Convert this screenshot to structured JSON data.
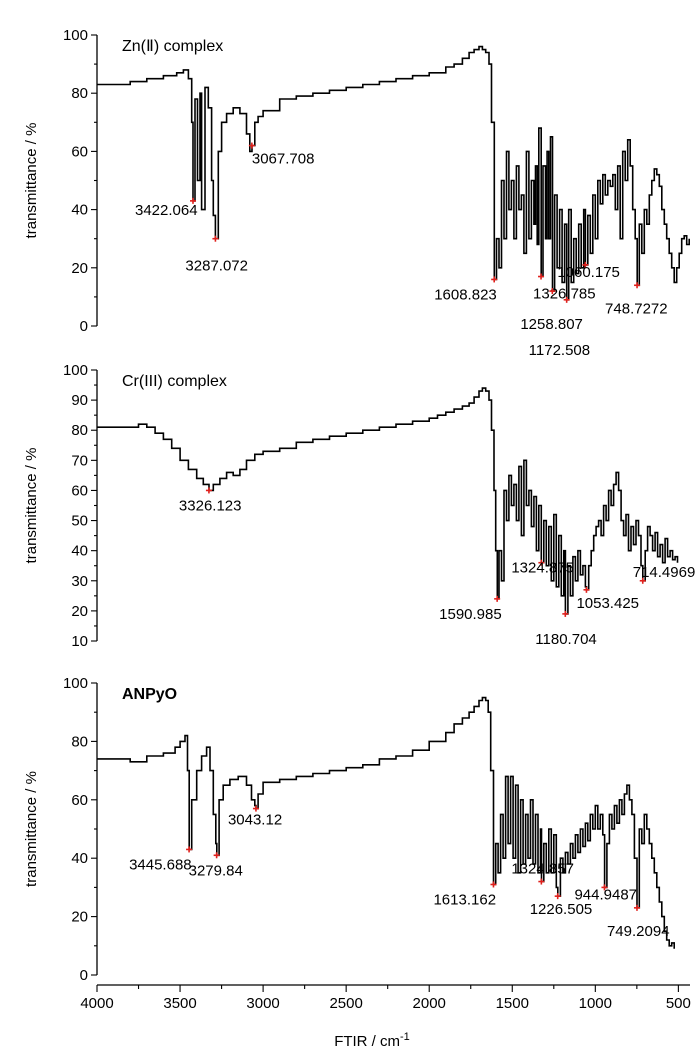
{
  "chart_data": {
    "type": "line",
    "xlabel": "FTIR / cm",
    "xlabel_sup": "-1",
    "xlim": [
      4000,
      430
    ],
    "x_ticks": [
      "4000",
      "3500",
      "3000",
      "2500",
      "2000",
      "1500",
      "1000",
      "500"
    ],
    "x_tick_values": [
      4000,
      3500,
      3000,
      2500,
      2000,
      1500,
      1000,
      500
    ],
    "panels": [
      {
        "title": "Zn(Ⅱ) complex",
        "title_bold": false,
        "ylabel": "transmittance / %",
        "ylim": [
          0,
          100
        ],
        "y_ticks": [
          "0",
          "20",
          "40",
          "60",
          "80",
          "100"
        ],
        "y_tick_values": [
          0,
          20,
          40,
          60,
          80,
          100
        ],
        "peaks": [
          {
            "x": 3422.064,
            "y": 43,
            "label": "3422.064"
          },
          {
            "x": 3287.072,
            "y": 30,
            "label": "3287.072"
          },
          {
            "x": 3067.708,
            "y": 62,
            "label": "3067.708"
          },
          {
            "x": 1608.823,
            "y": 16,
            "label": "1608.823"
          },
          {
            "x": 1326.785,
            "y": 17,
            "label": "1326.785"
          },
          {
            "x": 1258.807,
            "y": 12,
            "label": "1258.807"
          },
          {
            "x": 1172.508,
            "y": 9,
            "label": "1172.508"
          },
          {
            "x": 1060.175,
            "y": 21,
            "label": "1060.175"
          },
          {
            "x": 748.7272,
            "y": 14,
            "label": "748.7272"
          }
        ],
        "series": [
          {
            "x": [
              4000,
              3900,
              3800,
              3700,
              3600,
              3520,
              3480,
              3450,
              3430,
              3422,
              3410,
              3395,
              3380,
              3370,
              3350,
              3330,
              3310,
              3300,
              3287,
              3270,
              3250,
              3220,
              3180,
              3140,
              3100,
              3080,
              3067,
              3050,
              3030,
              3000,
              2900,
              2800,
              2700,
              2600,
              2500,
              2400,
              2300,
              2200,
              2100,
              2000,
              1900,
              1850,
              1800,
              1760,
              1730,
              1700,
              1680,
              1660,
              1640,
              1625,
              1608,
              1595,
              1580,
              1565,
              1550,
              1535,
              1520,
              1505,
              1490,
              1475,
              1460,
              1445,
              1430,
              1415,
              1400,
              1385,
              1370,
              1360,
              1350,
              1340,
              1326,
              1315,
              1300,
              1290,
              1280,
              1270,
              1258,
              1245,
              1230,
              1215,
              1200,
              1185,
              1172,
              1160,
              1145,
              1130,
              1115,
              1100,
              1085,
              1070,
              1060,
              1045,
              1030,
              1015,
              1000,
              985,
              970,
              955,
              940,
              925,
              910,
              895,
              880,
              865,
              850,
              835,
              820,
              805,
              790,
              775,
              760,
              748,
              735,
              720,
              705,
              690,
              675,
              660,
              645,
              630,
              615,
              600,
              585,
              570,
              555,
              540,
              525,
              510,
              495,
              480,
              465,
              450,
              435
            ],
            "y": [
              83,
              83,
              84,
              85,
              86,
              87,
              88,
              85,
              70,
              43,
              78,
              50,
              80,
              40,
              82,
              75,
              50,
              38,
              30,
              60,
              70,
              73,
              75,
              73,
              66,
              60,
              62,
              70,
              72,
              74,
              78,
              79,
              80,
              81,
              82,
              83,
              84,
              85,
              86,
              87,
              89,
              90,
              92,
              94,
              95,
              96,
              95,
              94,
              90,
              70,
              16,
              30,
              20,
              50,
              30,
              60,
              40,
              50,
              30,
              55,
              40,
              45,
              25,
              60,
              30,
              50,
              35,
              55,
              28,
              68,
              17,
              55,
              30,
              60,
              30,
              65,
              12,
              45,
              20,
              40,
              15,
              35,
              9,
              40,
              15,
              30,
              18,
              35,
              20,
              40,
              21,
              38,
              25,
              45,
              30,
              50,
              42,
              52,
              45,
              50,
              48,
              52,
              40,
              55,
              30,
              60,
              50,
              64,
              55,
              40,
              30,
              14,
              35,
              25,
              40,
              35,
              45,
              50,
              54,
              52,
              48,
              40,
              35,
              30,
              25,
              20,
              15,
              20,
              25,
              30,
              31,
              28,
              30
            ]
          }
        ]
      },
      {
        "title": "Cr(III) complex",
        "title_bold": false,
        "ylabel": "transmittance / %",
        "ylim": [
          10,
          100
        ],
        "y_ticks": [
          "10",
          "20",
          "30",
          "40",
          "50",
          "60",
          "70",
          "80",
          "90",
          "100"
        ],
        "y_tick_values": [
          10,
          20,
          30,
          40,
          50,
          60,
          70,
          80,
          90,
          100
        ],
        "peaks": [
          {
            "x": 3326.123,
            "y": 60,
            "label": "3326.123"
          },
          {
            "x": 1590.985,
            "y": 24,
            "label": "1590.985"
          },
          {
            "x": 1324.875,
            "y": 36,
            "label": "1324.875"
          },
          {
            "x": 1180.704,
            "y": 19,
            "label": "1180.704"
          },
          {
            "x": 1053.425,
            "y": 27,
            "label": "1053.425"
          },
          {
            "x": 714.4969,
            "y": 30,
            "label": "714.4969"
          }
        ],
        "series": [
          {
            "x": [
              4000,
              3900,
              3800,
              3750,
              3700,
              3650,
              3600,
              3550,
              3500,
              3450,
              3400,
              3360,
              3326,
              3300,
              3260,
              3220,
              3180,
              3140,
              3100,
              3050,
              3000,
              2900,
              2800,
              2700,
              2600,
              2500,
              2400,
              2300,
              2200,
              2100,
              2000,
              1950,
              1900,
              1850,
              1800,
              1760,
              1730,
              1700,
              1680,
              1660,
              1640,
              1625,
              1610,
              1600,
              1590,
              1580,
              1565,
              1550,
              1535,
              1520,
              1505,
              1490,
              1475,
              1460,
              1445,
              1430,
              1415,
              1400,
              1385,
              1370,
              1355,
              1340,
              1325,
              1310,
              1295,
              1280,
              1265,
              1250,
              1235,
              1220,
              1205,
              1190,
              1180,
              1165,
              1150,
              1135,
              1120,
              1105,
              1090,
              1075,
              1060,
              1053,
              1040,
              1025,
              1010,
              995,
              980,
              965,
              950,
              935,
              920,
              905,
              890,
              875,
              860,
              845,
              830,
              815,
              800,
              785,
              770,
              755,
              740,
              725,
              714,
              700,
              685,
              670,
              655,
              640,
              625,
              610,
              595,
              580,
              565,
              550,
              535,
              520,
              505
            ],
            "y": [
              81,
              81,
              81,
              82,
              81,
              79,
              77,
              74,
              70,
              67,
              64,
              62,
              60,
              62,
              64,
              66,
              65,
              67,
              70,
              72,
              73,
              74,
              76,
              77,
              78,
              79,
              80,
              81,
              82,
              83,
              84,
              85,
              86,
              87,
              88,
              89,
              91,
              93,
              94,
              93,
              90,
              80,
              60,
              40,
              24,
              40,
              30,
              60,
              50,
              65,
              55,
              62,
              50,
              68,
              45,
              70,
              55,
              60,
              48,
              58,
              40,
              55,
              36,
              50,
              35,
              48,
              30,
              52,
              28,
              45,
              25,
              40,
              19,
              35,
              25,
              38,
              30,
              40,
              32,
              35,
              28,
              27,
              35,
              40,
              45,
              48,
              50,
              45,
              55,
              50,
              60,
              55,
              62,
              66,
              60,
              50,
              45,
              52,
              40,
              48,
              42,
              50,
              45,
              35,
              30,
              40,
              48,
              45,
              40,
              46,
              38,
              42,
              36,
              44,
              38,
              40,
              37,
              38,
              36
            ]
          }
        ]
      },
      {
        "title": "ANPyO",
        "title_bold": true,
        "ylabel": "transmittance / %",
        "ylim": [
          0,
          100
        ],
        "y_ticks": [
          "0",
          "20",
          "40",
          "60",
          "80",
          "100"
        ],
        "y_tick_values": [
          0,
          20,
          40,
          60,
          80,
          100
        ],
        "peaks": [
          {
            "x": 3445.688,
            "y": 43,
            "label": "3445.688"
          },
          {
            "x": 3279.84,
            "y": 41,
            "label": "3279.84"
          },
          {
            "x": 3043.12,
            "y": 57,
            "label": "3043.12"
          },
          {
            "x": 1613.162,
            "y": 31,
            "label": "1613.162"
          },
          {
            "x": 1324.857,
            "y": 32,
            "label": "1324.857"
          },
          {
            "x": 1226.505,
            "y": 27,
            "label": "1226.505"
          },
          {
            "x": 944.9487,
            "y": 30,
            "label": "944.9487"
          },
          {
            "x": 749.2094,
            "y": 23,
            "label": "749.2094"
          }
        ],
        "series": [
          {
            "x": [
              4000,
              3900,
              3800,
              3700,
              3600,
              3530,
              3500,
              3470,
              3455,
              3445,
              3430,
              3400,
              3370,
              3340,
              3320,
              3300,
              3285,
              3279,
              3265,
              3240,
              3200,
              3150,
              3100,
              3070,
              3050,
              3043,
              3030,
              3000,
              2900,
              2800,
              2700,
              2600,
              2500,
              2400,
              2300,
              2200,
              2100,
              2000,
              1900,
              1850,
              1800,
              1760,
              1730,
              1700,
              1680,
              1660,
              1645,
              1630,
              1613,
              1600,
              1585,
              1570,
              1555,
              1540,
              1525,
              1510,
              1495,
              1480,
              1465,
              1450,
              1435,
              1420,
              1405,
              1390,
              1375,
              1360,
              1345,
              1330,
              1324,
              1310,
              1295,
              1280,
              1265,
              1250,
              1235,
              1226,
              1210,
              1195,
              1180,
              1165,
              1150,
              1135,
              1120,
              1105,
              1090,
              1075,
              1060,
              1045,
              1030,
              1015,
              1000,
              985,
              970,
              955,
              944,
              930,
              915,
              900,
              885,
              870,
              855,
              840,
              825,
              810,
              795,
              780,
              765,
              749,
              735,
              720,
              705,
              690,
              675,
              660,
              645,
              630,
              615,
              600,
              585,
              570,
              555,
              540,
              525
            ],
            "y": [
              74,
              74,
              73,
              75,
              76,
              78,
              80,
              82,
              70,
              43,
              60,
              70,
              75,
              78,
              70,
              55,
              45,
              41,
              60,
              65,
              67,
              68,
              65,
              60,
              58,
              57,
              62,
              66,
              67,
              68,
              69,
              70,
              71,
              72,
              74,
              75,
              77,
              80,
              83,
              86,
              88,
              90,
              92,
              94,
              95,
              94,
              90,
              70,
              31,
              45,
              35,
              55,
              40,
              68,
              45,
              68,
              40,
              65,
              35,
              60,
              38,
              55,
              40,
              60,
              38,
              55,
              35,
              50,
              32,
              45,
              35,
              50,
              35,
              48,
              30,
              27,
              40,
              35,
              42,
              38,
              45,
              40,
              48,
              42,
              50,
              44,
              52,
              46,
              55,
              50,
              58,
              50,
              55,
              48,
              30,
              45,
              55,
              50,
              58,
              52,
              60,
              55,
              62,
              65,
              60,
              55,
              40,
              23,
              50,
              45,
              55,
              50,
              45,
              40,
              35,
              30,
              25,
              20,
              15,
              12,
              10,
              11,
              9
            ]
          }
        ]
      }
    ]
  }
}
